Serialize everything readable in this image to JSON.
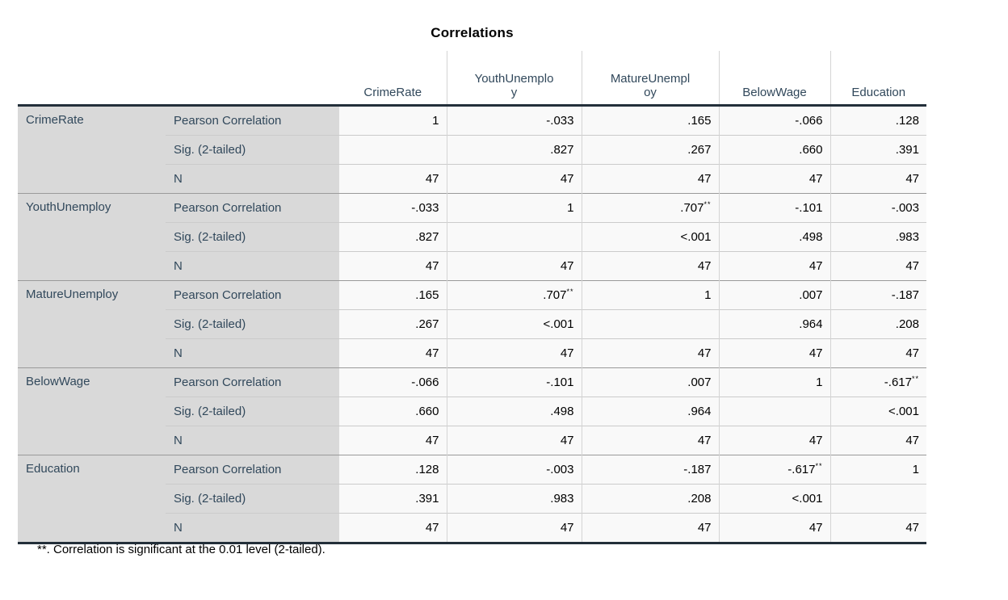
{
  "title": "Correlations",
  "columns": [
    "CrimeRate",
    "YouthUnemploy",
    "MatureUnemploy",
    "BelowWage",
    "Education"
  ],
  "statistics": [
    "Pearson Correlation",
    "Sig. (2-tailed)",
    "N"
  ],
  "blocks": [
    {
      "variable": "CrimeRate",
      "pearson": [
        "1",
        "-.033",
        ".165",
        "-.066",
        ".128"
      ],
      "pearson_sup": [
        "",
        "",
        "",
        "",
        ""
      ],
      "sig": [
        "",
        ".827",
        ".267",
        ".660",
        ".391"
      ],
      "n": [
        "47",
        "47",
        "47",
        "47",
        "47"
      ]
    },
    {
      "variable": "YouthUnemploy",
      "pearson": [
        "-.033",
        "1",
        ".707",
        "-.101",
        "-.003"
      ],
      "pearson_sup": [
        "",
        "",
        "**",
        "",
        ""
      ],
      "sig": [
        ".827",
        "",
        "<.001",
        ".498",
        ".983"
      ],
      "n": [
        "47",
        "47",
        "47",
        "47",
        "47"
      ]
    },
    {
      "variable": "MatureUnemploy",
      "pearson": [
        ".165",
        ".707",
        "1",
        ".007",
        "-.187"
      ],
      "pearson_sup": [
        "",
        "**",
        "",
        "",
        ""
      ],
      "sig": [
        ".267",
        "<.001",
        "",
        ".964",
        ".208"
      ],
      "n": [
        "47",
        "47",
        "47",
        "47",
        "47"
      ]
    },
    {
      "variable": "BelowWage",
      "pearson": [
        "-.066",
        "-.101",
        ".007",
        "1",
        "-.617"
      ],
      "pearson_sup": [
        "",
        "",
        "",
        "",
        "**"
      ],
      "sig": [
        ".660",
        ".498",
        ".964",
        "",
        "<.001"
      ],
      "n": [
        "47",
        "47",
        "47",
        "47",
        "47"
      ]
    },
    {
      "variable": "Education",
      "pearson": [
        ".128",
        "-.003",
        "-.187",
        "-.617",
        "1"
      ],
      "pearson_sup": [
        "",
        "",
        "",
        "**",
        ""
      ],
      "sig": [
        ".391",
        ".983",
        ".208",
        "<.001",
        ""
      ],
      "n": [
        "47",
        "47",
        "47",
        "47",
        "47"
      ]
    }
  ],
  "footnote": "**. Correlation is significant at the 0.01 level (2-tailed).",
  "colors": {
    "label_text": "#31485b",
    "stub_background": "#d9d9d9",
    "cell_background": "#f9f9f9",
    "heavy_rule": "#232f3a",
    "block_rule": "#9a9a9a",
    "row_rule": "#cbcbcb"
  }
}
